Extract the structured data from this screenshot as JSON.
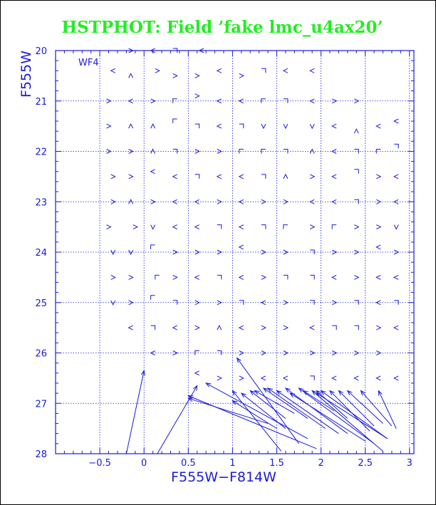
{
  "chart_data": {
    "type": "scatter",
    "title": "HSTPHOT: Field ’fake lmc_u4ax20’",
    "xlabel": "F555W−F814W",
    "ylabel": "F555W",
    "annotation": "WF4",
    "xlim": [
      -1.0,
      3.05
    ],
    "ylim": [
      28,
      20
    ],
    "x_ticks": [
      "−0.5",
      "0",
      "0.5",
      "1",
      "1.5",
      "2",
      "2.5",
      "3"
    ],
    "y_ticks": [
      "20",
      "21",
      "22",
      "23",
      "24",
      "25",
      "26",
      "27",
      "28"
    ],
    "grid": true,
    "colors": {
      "title": "#22ee22",
      "data": "#1a1adc",
      "axis": "#1a1adc"
    },
    "glyph_labels": [
      "<",
      ">",
      "∨",
      "∧",
      "⌐",
      "┐"
    ],
    "points": [
      [
        -0.15,
        20,
        1
      ],
      [
        0.1,
        20,
        0
      ],
      [
        0.35,
        20,
        5
      ],
      [
        0.65,
        20,
        0
      ],
      [
        -0.35,
        20.4,
        0
      ],
      [
        -0.15,
        20.5,
        3
      ],
      [
        0.15,
        20.4,
        1
      ],
      [
        0.35,
        20.5,
        1
      ],
      [
        0.6,
        20.5,
        1
      ],
      [
        0.85,
        20.4,
        0
      ],
      [
        1.1,
        20.5,
        1
      ],
      [
        1.35,
        20.4,
        5
      ],
      [
        1.6,
        20.4,
        0
      ],
      [
        1.9,
        20.4,
        0
      ],
      [
        -0.4,
        21,
        1
      ],
      [
        -0.15,
        21,
        0
      ],
      [
        0.1,
        21,
        1
      ],
      [
        0.35,
        21,
        4
      ],
      [
        0.6,
        20.9,
        1
      ],
      [
        0.85,
        21,
        0
      ],
      [
        1.1,
        21,
        0
      ],
      [
        1.35,
        21,
        4
      ],
      [
        1.6,
        21,
        5
      ],
      [
        1.9,
        21,
        0
      ],
      [
        2.15,
        21,
        1
      ],
      [
        2.4,
        21,
        1
      ],
      [
        -0.4,
        21.5,
        1
      ],
      [
        -0.15,
        21.5,
        3
      ],
      [
        0.1,
        21.5,
        3
      ],
      [
        0.35,
        21.4,
        4
      ],
      [
        0.6,
        21.5,
        5
      ],
      [
        0.85,
        21.5,
        0
      ],
      [
        1.1,
        21.5,
        5
      ],
      [
        1.35,
        21.5,
        2
      ],
      [
        1.6,
        21.5,
        2
      ],
      [
        1.9,
        21.5,
        2
      ],
      [
        2.15,
        21.5,
        0
      ],
      [
        2.4,
        21.6,
        3
      ],
      [
        2.65,
        21.5,
        0
      ],
      [
        2.85,
        21.4,
        0
      ],
      [
        -0.4,
        22,
        1
      ],
      [
        -0.15,
        22,
        1
      ],
      [
        0.1,
        22,
        3
      ],
      [
        0.35,
        22,
        5
      ],
      [
        0.6,
        22,
        1
      ],
      [
        0.85,
        22,
        1
      ],
      [
        1.1,
        22,
        4
      ],
      [
        1.35,
        22,
        4
      ],
      [
        1.6,
        22,
        5
      ],
      [
        1.9,
        22,
        3
      ],
      [
        2.15,
        22,
        0
      ],
      [
        2.4,
        22,
        5
      ],
      [
        2.65,
        22,
        4
      ],
      [
        2.85,
        21.9,
        5
      ],
      [
        -0.35,
        22.5,
        1
      ],
      [
        -0.15,
        22.5,
        1
      ],
      [
        0.1,
        22.4,
        0
      ],
      [
        0.35,
        22.5,
        0
      ],
      [
        0.6,
        22.5,
        5
      ],
      [
        0.85,
        22.5,
        0
      ],
      [
        1.1,
        22.5,
        0
      ],
      [
        1.35,
        22.5,
        5
      ],
      [
        1.6,
        22.5,
        3
      ],
      [
        1.9,
        22.5,
        1
      ],
      [
        2.15,
        22.5,
        0
      ],
      [
        2.4,
        22.4,
        5
      ],
      [
        2.65,
        22.5,
        1
      ],
      [
        2.85,
        22.5,
        0
      ],
      [
        -0.35,
        23,
        1
      ],
      [
        -0.15,
        23,
        3
      ],
      [
        0.1,
        23,
        1
      ],
      [
        0.35,
        23,
        0
      ],
      [
        0.6,
        23,
        0
      ],
      [
        0.85,
        23,
        1
      ],
      [
        1.1,
        23,
        0
      ],
      [
        1.35,
        23,
        1
      ],
      [
        1.6,
        23,
        1
      ],
      [
        1.9,
        23,
        0
      ],
      [
        2.15,
        23,
        0
      ],
      [
        2.4,
        23,
        5
      ],
      [
        2.65,
        23,
        1
      ],
      [
        2.85,
        23,
        0
      ],
      [
        -0.4,
        23.5,
        1
      ],
      [
        -0.1,
        23.5,
        1
      ],
      [
        0.1,
        23.5,
        2
      ],
      [
        0.35,
        23.5,
        0
      ],
      [
        0.6,
        23.5,
        0
      ],
      [
        0.85,
        23.5,
        5
      ],
      [
        1.1,
        23.5,
        0
      ],
      [
        1.35,
        23.5,
        5
      ],
      [
        1.6,
        23.5,
        4
      ],
      [
        1.9,
        23.5,
        1
      ],
      [
        2.15,
        23.5,
        4
      ],
      [
        2.4,
        23.5,
        1
      ],
      [
        2.65,
        23.5,
        1
      ],
      [
        2.85,
        23.5,
        2
      ],
      [
        -0.35,
        24,
        2
      ],
      [
        -0.15,
        24,
        2
      ],
      [
        0.1,
        23.9,
        4
      ],
      [
        0.35,
        24,
        1
      ],
      [
        0.6,
        24,
        1
      ],
      [
        0.85,
        24,
        1
      ],
      [
        1.1,
        23.9,
        0
      ],
      [
        1.35,
        24,
        1
      ],
      [
        1.6,
        24,
        1
      ],
      [
        1.9,
        24,
        5
      ],
      [
        2.15,
        24,
        1
      ],
      [
        2.4,
        24,
        1
      ],
      [
        2.65,
        23.9,
        0
      ],
      [
        2.85,
        24,
        1
      ],
      [
        -0.35,
        24.5,
        1
      ],
      [
        -0.15,
        24.5,
        1
      ],
      [
        0.15,
        24.5,
        4
      ],
      [
        0.35,
        24.5,
        1
      ],
      [
        0.6,
        24.5,
        0
      ],
      [
        0.85,
        24.5,
        5
      ],
      [
        1.1,
        24.5,
        0
      ],
      [
        1.35,
        24.5,
        1
      ],
      [
        1.6,
        24.5,
        5
      ],
      [
        1.9,
        24.5,
        5
      ],
      [
        2.15,
        24.5,
        0
      ],
      [
        2.4,
        24.5,
        1
      ],
      [
        2.65,
        24.5,
        0
      ],
      [
        2.85,
        24.5,
        0
      ],
      [
        -0.35,
        25,
        2
      ],
      [
        -0.15,
        25,
        1
      ],
      [
        0.1,
        24.9,
        4
      ],
      [
        0.35,
        25,
        5
      ],
      [
        0.6,
        25,
        1
      ],
      [
        0.85,
        25,
        1
      ],
      [
        1.1,
        25,
        5
      ],
      [
        1.35,
        25,
        0
      ],
      [
        1.6,
        25,
        1
      ],
      [
        1.9,
        25,
        5
      ],
      [
        2.15,
        25,
        1
      ],
      [
        2.4,
        25,
        5
      ],
      [
        2.65,
        25,
        0
      ],
      [
        2.85,
        25,
        5
      ],
      [
        -0.15,
        25.5,
        0
      ],
      [
        0.1,
        25.5,
        5
      ],
      [
        0.35,
        25.5,
        0
      ],
      [
        0.6,
        25.5,
        1
      ],
      [
        0.85,
        25.5,
        3
      ],
      [
        1.1,
        25.5,
        0
      ],
      [
        1.35,
        25.5,
        1
      ],
      [
        1.6,
        25.5,
        1
      ],
      [
        1.9,
        25.5,
        0
      ],
      [
        2.15,
        25.5,
        5
      ],
      [
        2.4,
        25.5,
        5
      ],
      [
        2.65,
        25.5,
        1
      ],
      [
        2.85,
        25.5,
        0
      ],
      [
        0.1,
        26,
        0
      ],
      [
        0.35,
        26,
        1
      ],
      [
        0.6,
        26,
        4
      ],
      [
        0.85,
        26,
        5
      ],
      [
        1.1,
        26,
        1
      ],
      [
        1.35,
        26,
        1
      ],
      [
        1.6,
        26,
        1
      ],
      [
        1.9,
        26,
        1
      ],
      [
        2.15,
        26,
        1
      ],
      [
        2.4,
        26,
        1
      ],
      [
        2.65,
        26,
        1
      ],
      [
        0.6,
        26.4,
        0
      ],
      [
        0.85,
        26.5,
        1
      ],
      [
        1.1,
        26.5,
        1
      ],
      [
        1.35,
        26.5,
        0
      ],
      [
        1.6,
        26.5,
        0
      ],
      [
        1.9,
        26.5,
        5
      ],
      [
        2.15,
        26.5,
        0
      ],
      [
        2.4,
        26.5,
        0
      ],
      [
        2.65,
        26.5,
        0
      ],
      [
        2.85,
        26.5,
        0
      ]
    ],
    "vectors": [
      [
        -0.2,
        28,
        0,
        26.35
      ],
      [
        0.15,
        28,
        0.6,
        26.65
      ],
      [
        1.75,
        27.8,
        1.05,
        26.1
      ],
      [
        1.55,
        27.95,
        1.0,
        26.75
      ],
      [
        1.5,
        27.5,
        1.0,
        26.95
      ],
      [
        1.4,
        27.4,
        0.5,
        26.9
      ],
      [
        1.95,
        27.9,
        0.5,
        26.85
      ],
      [
        1.85,
        27.7,
        0.7,
        26.6
      ],
      [
        1.6,
        27.5,
        1.1,
        26.8
      ],
      [
        1.6,
        27.3,
        1.2,
        26.75
      ],
      [
        1.7,
        27.2,
        1.25,
        26.75
      ],
      [
        1.85,
        27.3,
        1.35,
        26.7
      ],
      [
        2.05,
        27.5,
        1.4,
        26.7
      ],
      [
        2.2,
        27.6,
        1.5,
        26.75
      ],
      [
        2.3,
        27.6,
        1.6,
        26.7
      ],
      [
        2.5,
        27.75,
        1.65,
        26.8
      ],
      [
        2.6,
        27.8,
        1.75,
        26.7
      ],
      [
        2.7,
        27.95,
        1.9,
        26.75
      ],
      [
        2.75,
        27.7,
        1.95,
        26.8
      ],
      [
        2.75,
        27.7,
        2.0,
        26.75
      ],
      [
        2.55,
        27.55,
        2.1,
        26.75
      ],
      [
        2.6,
        27.45,
        2.2,
        26.75
      ],
      [
        2.7,
        27.4,
        2.3,
        26.75
      ],
      [
        2.8,
        27.45,
        2.45,
        26.75
      ],
      [
        2.85,
        27.5,
        2.65,
        26.75
      ],
      [
        2.3,
        27.3,
        1.95,
        26.75
      ],
      [
        2.15,
        27.15,
        1.8,
        26.75
      ]
    ]
  }
}
